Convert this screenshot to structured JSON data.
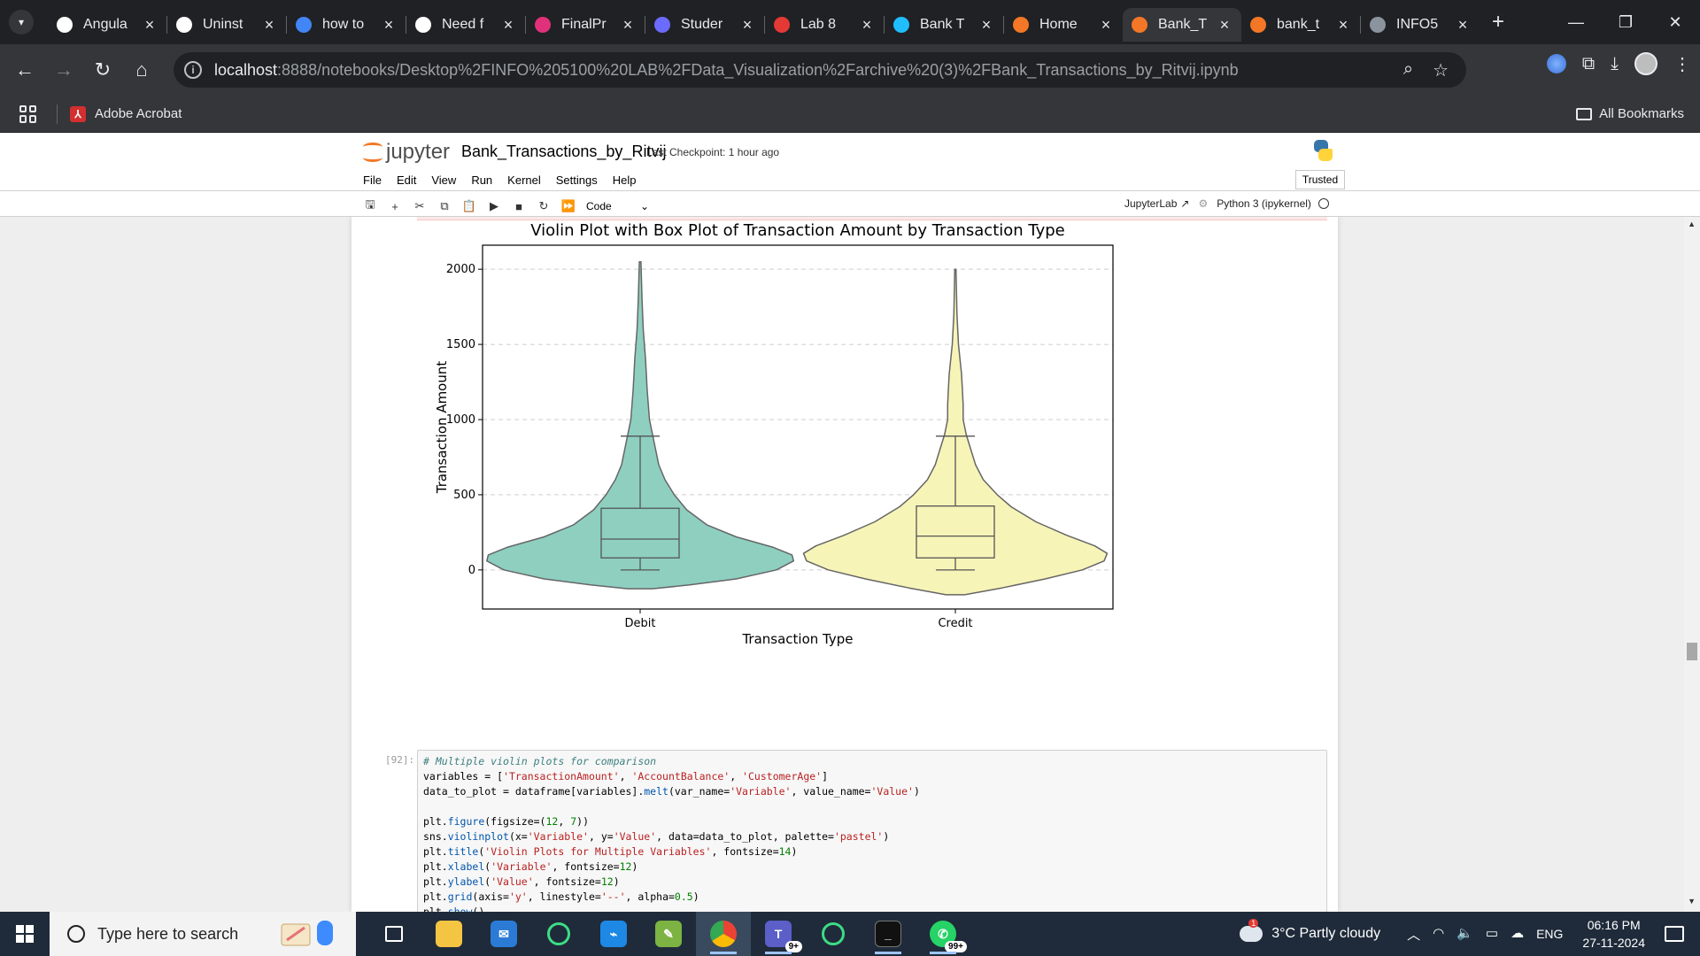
{
  "browser": {
    "tabs": [
      {
        "title": "Angula",
        "icon": "openai-icon",
        "color": "#ffffff"
      },
      {
        "title": "Uninst",
        "icon": "openai-icon",
        "color": "#ffffff"
      },
      {
        "title": "how to",
        "icon": "google-icon",
        "color": "#4285f4"
      },
      {
        "title": "Need f",
        "icon": "openai-icon",
        "color": "#ffffff"
      },
      {
        "title": "FinalPr",
        "icon": "angular-icon",
        "color": "#e0317a"
      },
      {
        "title": "Studer",
        "icon": "studer-icon",
        "color": "#6b6bff"
      },
      {
        "title": "Lab 8",
        "icon": "lab-icon",
        "color": "#e53935"
      },
      {
        "title": "Bank T",
        "icon": "kaggle-icon",
        "color": "#20beff"
      },
      {
        "title": "Home",
        "icon": "jupyter-icon",
        "color": "#f37726"
      },
      {
        "title": "Bank_T",
        "icon": "notebook-icon",
        "color": "#f37726",
        "active": true
      },
      {
        "title": "bank_t",
        "icon": "file-icon",
        "color": "#f37726"
      },
      {
        "title": "INFO5",
        "icon": "github-icon",
        "color": "#8b949e"
      }
    ],
    "url_host": "localhost",
    "url_path": ":8888/notebooks/Desktop%2FINFO%205100%20LAB%2FData_Visualization%2Farchive%20(3)%2FBank_Transactions_by_Ritvij.ipynb",
    "bookmarks": [
      "Adobe Acrobat"
    ],
    "all_bookmarks": "All Bookmarks"
  },
  "jupyter": {
    "logo_text": "jupyter",
    "notebook_title": "Bank_Transactions_by_Ritvij",
    "checkpoint": "Last Checkpoint: 1 hour ago",
    "menu": [
      "File",
      "Edit",
      "View",
      "Run",
      "Kernel",
      "Settings",
      "Help"
    ],
    "trusted": "Trusted",
    "cell_type": "Code",
    "jupyterlab_link": "JupyterLab",
    "kernel": "Python 3 (ipykernel)"
  },
  "chart_data": {
    "type": "violin",
    "title": "Violin Plot with Box Plot of Transaction Amount by Transaction Type",
    "xlabel": "Transaction Type",
    "ylabel": "Transaction Amount",
    "categories": [
      "Debit",
      "Credit"
    ],
    "ylim": [
      -260,
      2160
    ],
    "yticks": [
      0,
      500,
      1000,
      1500,
      2000
    ],
    "grid": "y dashed",
    "colors": [
      "#8ecfc0",
      "#f7f4b8"
    ],
    "box": [
      {
        "category": "Debit",
        "whisker_low": 0,
        "q1": 80,
        "median": 205,
        "q3": 410,
        "whisker_high": 890
      },
      {
        "category": "Credit",
        "whisker_low": 0,
        "q1": 80,
        "median": 225,
        "q3": 425,
        "whisker_high": 890
      }
    ],
    "violin_range": [
      {
        "category": "Debit",
        "min": -125,
        "max": 2050
      },
      {
        "category": "Credit",
        "min": -165,
        "max": 2000
      }
    ]
  },
  "code_cell": {
    "prompt": "[92]:"
  },
  "taskbar": {
    "search_placeholder": "Type here to search",
    "weather_temp": "3°C",
    "weather_text": "Partly cloudy",
    "weather_badge": "1",
    "lang": "ENG",
    "time": "06:16 PM",
    "date": "27-11-2024",
    "teams_badge": "9+",
    "whatsapp_badge": "99+"
  }
}
